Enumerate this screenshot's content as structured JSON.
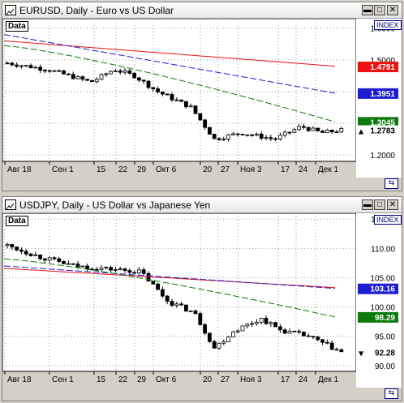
{
  "windows": [
    {
      "title": "EURUSD, Daily - Euro vs US Dollar",
      "data_label": "Data",
      "index_label": "INDEX",
      "scroll_glyph": "⇆",
      "min_label": "▬",
      "max_label": "□",
      "close_label": "✕",
      "price_tags": [
        {
          "value": "1.4791",
          "bg": "#ee1111",
          "fg": "#ffffff"
        },
        {
          "value": "1.3951",
          "bg": "#1d1dd4",
          "fg": "#ffffff"
        },
        {
          "value": "1.3045",
          "bg": "#0d7a0d",
          "fg": "#ffffff"
        },
        {
          "value": "1.2783",
          "bg": "#ffffff",
          "fg": "#000000",
          "marker": "▲"
        }
      ]
    },
    {
      "title": "USDJPY, Daily - US Dollar vs Japanese Yen",
      "data_label": "Data",
      "index_label": "INDEX",
      "scroll_glyph": "⇆",
      "min_label": "▬",
      "max_label": "□",
      "close_label": "✕",
      "price_tags": [
        {
          "value": "103.16",
          "bg": "#1d1dd4",
          "fg": "#ffffff"
        },
        {
          "value": "98.29",
          "bg": "#0d7a0d",
          "fg": "#ffffff"
        },
        {
          "value": "92.28",
          "bg": "#ffffff",
          "fg": "#000000",
          "marker": "▼"
        }
      ]
    }
  ],
  "chart_data": [
    {
      "type": "candlestick",
      "title": "EURUSD, Daily - Euro vs US Dollar",
      "x_ticks": [
        "Авг 18",
        "Сен 1",
        "15",
        "22",
        "29",
        "Окт 6",
        "20",
        "27",
        "Ноя 3",
        "17",
        "24",
        "Дек 1"
      ],
      "y_ticks": [
        "1.6000",
        "1.5000",
        "1.4000",
        "1.3000",
        "1.2000"
      ],
      "ylim": [
        1.18,
        1.63
      ],
      "gridlines": "dotted",
      "series": [
        {
          "name": "",
          "color": "#000000",
          "type": "candlestick"
        },
        {
          "name": "",
          "color": "#ee1111",
          "type": "line"
        },
        {
          "name": "",
          "color": "#1d1dd4",
          "type": "line"
        },
        {
          "name": "",
          "color": "#0d7a0d",
          "type": "line"
        }
      ],
      "candles": [
        1.4815,
        1.4818,
        1.4852,
        1.4812,
        1.4742,
        1.4711,
        1.4702,
        1.4669,
        1.4591,
        1.4544,
        1.4569,
        1.4593,
        1.4574,
        1.4553,
        1.4526,
        1.4519,
        1.4536,
        1.4534,
        1.452,
        1.4504,
        1.4498,
        1.4484,
        1.4492,
        1.4487,
        1.4465,
        1.4449,
        1.4452,
        1.4485,
        1.4468,
        1.439,
        1.4404,
        1.4398,
        1.4293,
        1.4233,
        1.4196,
        1.413,
        1.4068,
        1.408,
        1.4006,
        1.3962,
        1.3877,
        1.3847,
        1.3829,
        1.3758,
        1.3629,
        1.357,
        1.3515,
        1.3482,
        1.3451,
        1.3381,
        1.3324,
        1.3322,
        1.3279,
        1.3194,
        1.3204,
        1.3187,
        1.3159,
        1.3127,
        1.3107,
        1.3122,
        1.3099,
        1.3056,
        1.3039,
        1.2998,
        1.2931,
        1.2879,
        1.2834,
        1.2816,
        1.2783
      ],
      "candles_note": "",
      "ma_red": [
        1.56,
        1.48
      ],
      "ma_blue": [
        1.58,
        1.395
      ],
      "ma_green": [
        1.545,
        1.3045
      ],
      "last": 1.2783
    },
    {
      "type": "candlestick",
      "title": "USDJPY, Daily - US Dollar vs Japanese Yen",
      "x_ticks": [
        "Авг 18",
        "Сен 1",
        "15",
        "22",
        "29",
        "Окт 6",
        "20",
        "27",
        "Ноя 3",
        "17",
        "24",
        "Дек 1"
      ],
      "y_ticks": [
        "115.00",
        "110.00",
        "105.00",
        "100.00",
        "95.00",
        "90.00"
      ],
      "ylim": [
        89,
        116
      ],
      "gridlines": "dotted",
      "series": [
        {
          "name": "",
          "color": "#000000",
          "type": "candlestick"
        },
        {
          "name": "",
          "color": "#ee1111",
          "type": "line"
        },
        {
          "name": "",
          "color": "#1d1dd4",
          "type": "line"
        },
        {
          "name": "",
          "color": "#0d7a0d",
          "type": "line"
        }
      ],
      "ma_red": [
        106.6,
        103.3
      ],
      "ma_blue": [
        107.0,
        103.16
      ],
      "ma_green": [
        108.2,
        98.29
      ],
      "last": 92.28
    }
  ]
}
